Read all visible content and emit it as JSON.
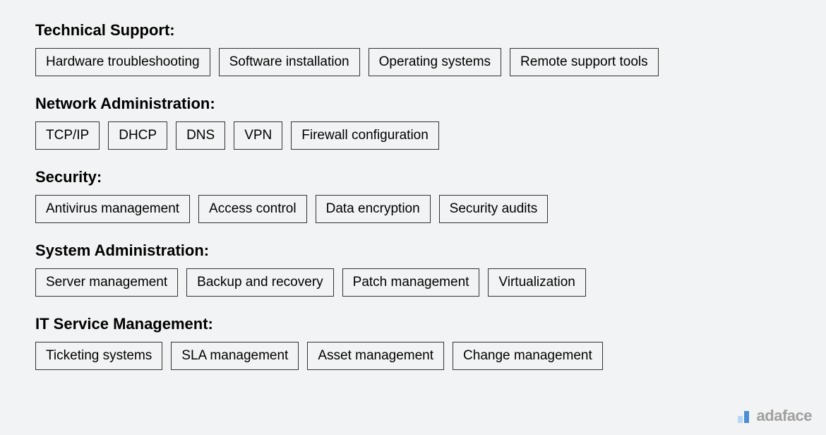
{
  "sections": [
    {
      "title": "Technical Support:",
      "tags": [
        "Hardware troubleshooting",
        "Software installation",
        "Operating systems",
        "Remote support tools"
      ]
    },
    {
      "title": "Network Administration:",
      "tags": [
        "TCP/IP",
        "DHCP",
        "DNS",
        "VPN",
        "Firewall configuration"
      ]
    },
    {
      "title": "Security:",
      "tags": [
        "Antivirus management",
        "Access control",
        "Data encryption",
        "Security audits"
      ]
    },
    {
      "title": "System Administration:",
      "tags": [
        "Server management",
        "Backup and recovery",
        "Patch management",
        "Virtualization"
      ]
    },
    {
      "title": "IT Service Management:",
      "tags": [
        "Ticketing systems",
        "SLA management",
        "Asset management",
        "Change management"
      ]
    }
  ],
  "logo": {
    "text": "adaface",
    "bar_back_color": "#b9d6f2",
    "bar_front_color": "#4a8fd6"
  },
  "colors": {
    "background": "#f2f3f4",
    "text": "#000000",
    "border": "#333333",
    "logo_text": "#a0a0a0"
  }
}
